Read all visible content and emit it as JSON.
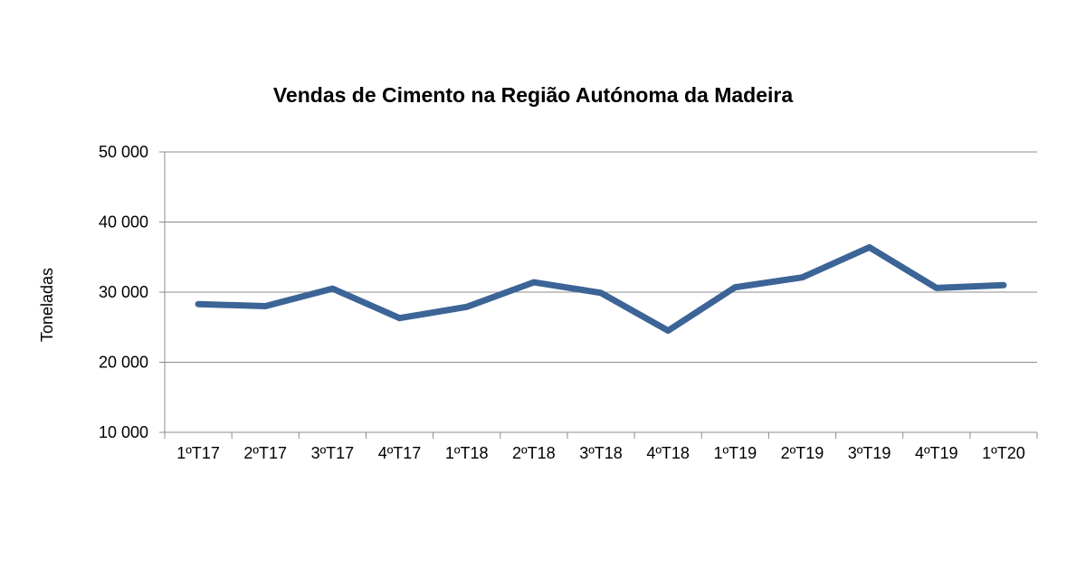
{
  "chart_data": {
    "type": "line",
    "title": "Vendas de Cimento na Região Autónoma da Madeira",
    "xlabel": "",
    "ylabel": "Toneladas",
    "categories": [
      "1ºT17",
      "2ºT17",
      "3ºT17",
      "4ºT17",
      "1ºT18",
      "2ºT18",
      "3ºT18",
      "4ºT18",
      "1ºT19",
      "2ºT19",
      "3ºT19",
      "4ºT19",
      "1ºT20"
    ],
    "series": [
      {
        "values": [
          28300,
          28000,
          30500,
          26300,
          27900,
          31400,
          29900,
          24500,
          30700,
          32100,
          36400,
          30600,
          31000
        ]
      }
    ],
    "ylim": [
      10000,
      50000
    ],
    "yticks": [
      10000,
      20000,
      30000,
      40000,
      50000
    ],
    "ytick_labels": [
      "10 000",
      "20 000",
      "30 000",
      "40 000",
      "50 000"
    ],
    "grid": true,
    "legend": "none",
    "line_color": "#3C6497"
  }
}
